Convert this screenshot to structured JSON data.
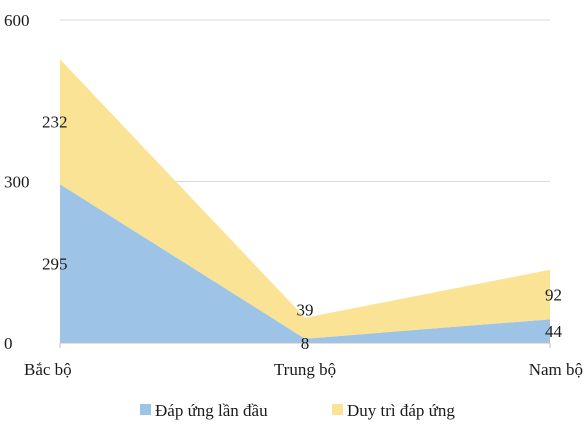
{
  "chart_data": {
    "type": "area",
    "stacked": true,
    "categories": [
      "Bắc bộ",
      "Trung bộ",
      "Nam bộ"
    ],
    "series": [
      {
        "name": "Đáp ứng lần đầu",
        "values": [
          295,
          8,
          44
        ],
        "color": "#9dc3e6"
      },
      {
        "name": "Duy trì đáp ứng",
        "values": [
          232,
          39,
          92
        ],
        "color": "#fae394"
      }
    ],
    "ylim": [
      0,
      600
    ],
    "yticks": [
      0,
      300,
      600
    ],
    "grid": true,
    "legend_position": "bottom"
  }
}
